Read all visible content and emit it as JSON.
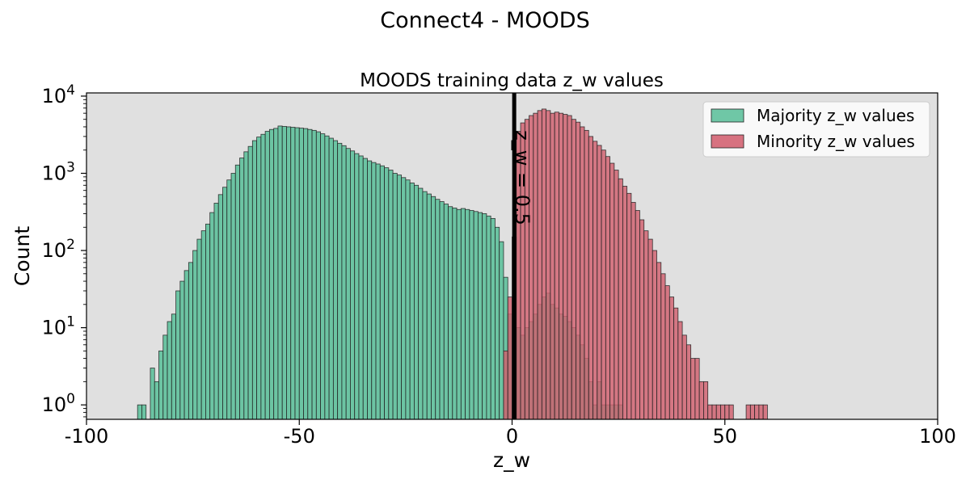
{
  "figure": {
    "suptitle": "Connect4 - MOODS"
  },
  "chart_data": {
    "type": "histogram",
    "title": "MOODS training data z_w values",
    "xlabel": "z_w",
    "ylabel": "Count",
    "xlim": [
      -100,
      100
    ],
    "ylim": [
      0.65,
      11000
    ],
    "yscale": "log",
    "grid": false,
    "background": "#e0e0e0",
    "legend_position": "top-right",
    "xticks": [
      {
        "value": -100,
        "label": "-100"
      },
      {
        "value": -50,
        "label": "-50"
      },
      {
        "value": 0,
        "label": "0"
      },
      {
        "value": 50,
        "label": "50"
      },
      {
        "value": 100,
        "label": "100"
      }
    ],
    "yticks": [
      {
        "value": 1,
        "base": "10",
        "exp": "0"
      },
      {
        "value": 10,
        "base": "10",
        "exp": "1"
      },
      {
        "value": 100,
        "base": "10",
        "exp": "2"
      },
      {
        "value": 1000,
        "base": "10",
        "exp": "3"
      },
      {
        "value": 10000,
        "base": "10",
        "exp": "4"
      }
    ],
    "bin_width": 1,
    "series": [
      {
        "name": "Majority z_w values",
        "color": "#5bbf9a",
        "bins": [
          [
            -88,
            1
          ],
          [
            -87,
            1
          ],
          [
            -85,
            3
          ],
          [
            -84,
            2
          ],
          [
            -83,
            5
          ],
          [
            -82,
            8
          ],
          [
            -81,
            12
          ],
          [
            -80,
            15
          ],
          [
            -79,
            30
          ],
          [
            -78,
            40
          ],
          [
            -77,
            55
          ],
          [
            -76,
            70
          ],
          [
            -75,
            100
          ],
          [
            -74,
            140
          ],
          [
            -73,
            180
          ],
          [
            -72,
            220
          ],
          [
            -71,
            310
          ],
          [
            -70,
            410
          ],
          [
            -69,
            530
          ],
          [
            -68,
            660
          ],
          [
            -67,
            820
          ],
          [
            -66,
            1000
          ],
          [
            -65,
            1280
          ],
          [
            -64,
            1580
          ],
          [
            -63,
            1900
          ],
          [
            -62,
            2230
          ],
          [
            -61,
            2650
          ],
          [
            -60,
            2950
          ],
          [
            -59,
            3200
          ],
          [
            -58,
            3500
          ],
          [
            -57,
            3700
          ],
          [
            -56,
            3820
          ],
          [
            -55,
            4100
          ],
          [
            -54,
            4050
          ],
          [
            -53,
            4000
          ],
          [
            -52,
            3950
          ],
          [
            -51,
            3900
          ],
          [
            -50,
            3850
          ],
          [
            -49,
            3800
          ],
          [
            -48,
            3700
          ],
          [
            -47,
            3600
          ],
          [
            -46,
            3450
          ],
          [
            -45,
            3250
          ],
          [
            -44,
            3050
          ],
          [
            -43,
            2850
          ],
          [
            -42,
            2650
          ],
          [
            -41,
            2450
          ],
          [
            -40,
            2280
          ],
          [
            -39,
            2100
          ],
          [
            -38,
            1950
          ],
          [
            -37,
            1800
          ],
          [
            -36,
            1680
          ],
          [
            -35,
            1560
          ],
          [
            -34,
            1450
          ],
          [
            -33,
            1380
          ],
          [
            -32,
            1320
          ],
          [
            -31,
            1250
          ],
          [
            -30,
            1180
          ],
          [
            -29,
            1100
          ],
          [
            -28,
            1000
          ],
          [
            -27,
            950
          ],
          [
            -26,
            880
          ],
          [
            -25,
            820
          ],
          [
            -24,
            750
          ],
          [
            -23,
            700
          ],
          [
            -22,
            640
          ],
          [
            -21,
            580
          ],
          [
            -20,
            540
          ],
          [
            -19,
            500
          ],
          [
            -18,
            460
          ],
          [
            -17,
            430
          ],
          [
            -16,
            400
          ],
          [
            -15,
            370
          ],
          [
            -14,
            355
          ],
          [
            -13,
            340
          ],
          [
            -12,
            350
          ],
          [
            -11,
            340
          ],
          [
            -10,
            330
          ],
          [
            -9,
            320
          ],
          [
            -8,
            310
          ],
          [
            -7,
            300
          ],
          [
            -6,
            280
          ],
          [
            -5,
            260
          ],
          [
            -4,
            200
          ],
          [
            -3,
            130
          ],
          [
            -2,
            45
          ],
          [
            -1,
            15
          ],
          [
            0,
            5
          ],
          [
            1,
            10
          ],
          [
            2,
            8
          ],
          [
            3,
            10
          ],
          [
            4,
            12
          ],
          [
            5,
            15
          ],
          [
            6,
            20
          ],
          [
            7,
            25
          ],
          [
            8,
            28
          ],
          [
            9,
            20
          ],
          [
            10,
            18
          ],
          [
            11,
            15
          ],
          [
            12,
            14
          ],
          [
            13,
            12
          ],
          [
            14,
            10
          ],
          [
            15,
            8
          ],
          [
            16,
            6
          ],
          [
            17,
            4
          ],
          [
            18,
            2
          ],
          [
            19,
            1
          ],
          [
            20,
            2
          ],
          [
            21,
            1
          ],
          [
            22,
            1
          ],
          [
            23,
            1
          ],
          [
            24,
            1
          ],
          [
            25,
            1
          ]
        ]
      },
      {
        "name": "Minority z_w values",
        "color": "#d15f6e",
        "bins": [
          [
            -2,
            5
          ],
          [
            -1,
            25
          ],
          [
            0,
            150
          ],
          [
            1,
            3500
          ],
          [
            2,
            4500
          ],
          [
            3,
            5000
          ],
          [
            4,
            5600
          ],
          [
            5,
            6000
          ],
          [
            6,
            6500
          ],
          [
            7,
            6800
          ],
          [
            8,
            6500
          ],
          [
            9,
            6000
          ],
          [
            10,
            6200
          ],
          [
            11,
            6000
          ],
          [
            12,
            5800
          ],
          [
            13,
            5600
          ],
          [
            14,
            5000
          ],
          [
            15,
            4600
          ],
          [
            16,
            4000
          ],
          [
            17,
            3600
          ],
          [
            18,
            3000
          ],
          [
            19,
            2600
          ],
          [
            20,
            2300
          ],
          [
            21,
            2000
          ],
          [
            22,
            1650
          ],
          [
            23,
            1350
          ],
          [
            24,
            1100
          ],
          [
            25,
            850
          ],
          [
            26,
            680
          ],
          [
            27,
            550
          ],
          [
            28,
            420
          ],
          [
            29,
            330
          ],
          [
            30,
            250
          ],
          [
            31,
            180
          ],
          [
            32,
            140
          ],
          [
            33,
            100
          ],
          [
            34,
            70
          ],
          [
            35,
            50
          ],
          [
            36,
            35
          ],
          [
            37,
            25
          ],
          [
            38,
            18
          ],
          [
            39,
            12
          ],
          [
            40,
            8
          ],
          [
            41,
            6
          ],
          [
            42,
            4
          ],
          [
            43,
            4
          ],
          [
            44,
            2
          ],
          [
            45,
            2
          ],
          [
            46,
            1
          ],
          [
            47,
            1
          ],
          [
            48,
            1
          ],
          [
            49,
            1
          ],
          [
            50,
            1
          ],
          [
            51,
            1
          ],
          [
            55,
            1
          ],
          [
            56,
            1
          ],
          [
            57,
            1
          ],
          [
            58,
            1
          ],
          [
            59,
            1
          ]
        ]
      }
    ],
    "vline": {
      "x": 0.5,
      "label": "z_w = 0.5",
      "color": "#000000"
    }
  }
}
